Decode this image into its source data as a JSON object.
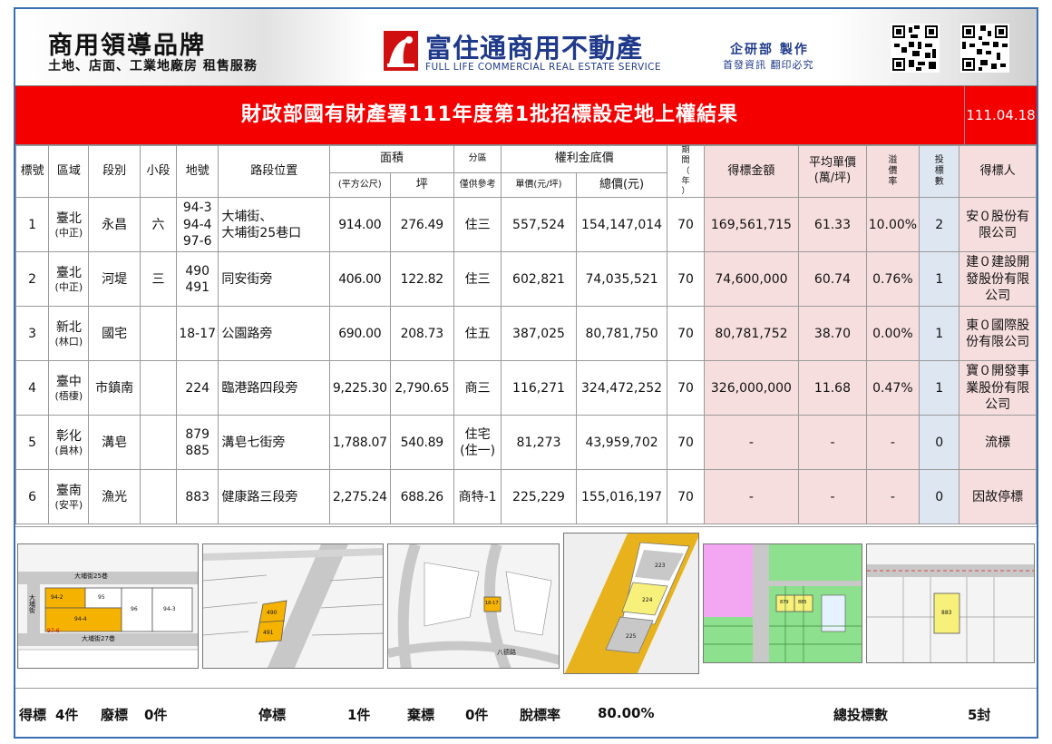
{
  "header": {
    "brand_title": "商用領導品牌",
    "brand_subtitle": "土地、店面、工業地廠房 租售服務",
    "company_name": "富住通商用不動產",
    "company_name_en": "FULL LIFE COMMERCIAL REAL ESTATE SERVICE",
    "made_by": "企研部 製作",
    "made_by_note": "首發資訊 翻印必究"
  },
  "title": "財政部國有財產署111年度第1批招標設定地上權結果",
  "date": "111.04.18",
  "columns": {
    "no": "標號",
    "region": "區域",
    "section": "段別",
    "subsection": "小段",
    "lot": "地號",
    "location": "路段位置",
    "area": "面積",
    "area_sqm": "(平方公尺)",
    "area_ping": "坪",
    "zone": "分區",
    "zone_note": "僅供參考",
    "base_price": "權利金底價",
    "unit_price": "單價(元/坪)",
    "total_price": "總價(元)",
    "term": "期間（年）",
    "winning_amount": "得標金額",
    "avg_unit_price": "平均單價(萬/坪)",
    "premium_rate": "溢價率",
    "bid_count": "投標數",
    "winner": "得標人"
  },
  "rows": [
    {
      "no": "1",
      "city": "臺北",
      "district": "(中正)",
      "section": "永昌",
      "subsection": "六",
      "lot": "94-3\n94-4\n97-6",
      "location": "大埔街、\n大埔街25巷口",
      "area_sqm": "914.00",
      "area_ping": "276.49",
      "zone": "住三",
      "unit_price": "557,524",
      "total_price": "154,147,014",
      "term": "70",
      "winning_amount": "169,561,715",
      "avg_unit_price": "61.33",
      "premium_rate": "10.00%",
      "bid_count": "2",
      "winner": "安０股份有限公司"
    },
    {
      "no": "2",
      "city": "臺北",
      "district": "(中正)",
      "section": "河堤",
      "subsection": "三",
      "lot": "490\n491",
      "location": "同安街旁",
      "area_sqm": "406.00",
      "area_ping": "122.82",
      "zone": "住三",
      "unit_price": "602,821",
      "total_price": "74,035,521",
      "term": "70",
      "winning_amount": "74,600,000",
      "avg_unit_price": "60.74",
      "premium_rate": "0.76%",
      "bid_count": "1",
      "winner": "建０建設開發股份有限公司"
    },
    {
      "no": "3",
      "city": "新北",
      "district": "(林口)",
      "section": "國宅",
      "subsection": "",
      "lot": "18-17",
      "location": "公園路旁",
      "area_sqm": "690.00",
      "area_ping": "208.73",
      "zone": "住五",
      "unit_price": "387,025",
      "total_price": "80,781,750",
      "term": "70",
      "winning_amount": "80,781,752",
      "avg_unit_price": "38.70",
      "premium_rate": "0.00%",
      "bid_count": "1",
      "winner": "東０國際股份有限公司"
    },
    {
      "no": "4",
      "city": "臺中",
      "district": "(梧棲)",
      "section": "市鎮南",
      "subsection": "",
      "lot": "224",
      "location": "臨港路四段旁",
      "area_sqm": "9,225.30",
      "area_ping": "2,790.65",
      "zone": "商三",
      "unit_price": "116,271",
      "total_price": "324,472,252",
      "term": "70",
      "winning_amount": "326,000,000",
      "avg_unit_price": "11.68",
      "premium_rate": "0.47%",
      "bid_count": "1",
      "winner": "寶０開發事業股份有限公司"
    },
    {
      "no": "5",
      "city": "彰化",
      "district": "(員林)",
      "section": "溝皂",
      "subsection": "",
      "lot": "879\n885",
      "location": "溝皂七街旁",
      "area_sqm": "1,788.07",
      "area_ping": "540.89",
      "zone": "住宅\n(住一)",
      "unit_price": "81,273",
      "total_price": "43,959,702",
      "term": "70",
      "winning_amount": "-",
      "avg_unit_price": "-",
      "premium_rate": "-",
      "bid_count": "0",
      "winner": "流標"
    },
    {
      "no": "6",
      "city": "臺南",
      "district": "(安平)",
      "section": "漁光",
      "subsection": "",
      "lot": "883",
      "location": "健康路三段旁",
      "area_sqm": "2,275.24",
      "area_ping": "688.26",
      "zone": "商特-1",
      "unit_price": "225,229",
      "total_price": "155,016,197",
      "term": "70",
      "winning_amount": "-",
      "avg_unit_price": "-",
      "premium_rate": "-",
      "bid_count": "0",
      "winner": "因故停標"
    }
  ],
  "maps": {
    "map1": {
      "street_top": "大埔街25巷",
      "street_bottom": "大埔街27巷",
      "street_left": "大埔街",
      "lots": [
        "94-2",
        "95",
        "94-4",
        "96",
        "94-3",
        "97-6"
      ]
    },
    "map2": {
      "lots": [
        "490",
        "491"
      ]
    },
    "map3": {
      "lots": [
        "18-17"
      ],
      "road": "八德路"
    },
    "map4": {
      "lots": [
        "223",
        "224",
        "225"
      ]
    },
    "map5": {
      "lots": [
        "879",
        "885"
      ]
    },
    "map6": {
      "lots": [
        "883"
      ]
    }
  },
  "footer": {
    "won_label": "得標",
    "won_value": "4件",
    "void_label": "廢標",
    "void_value": "0件",
    "stopped_label": "停標",
    "stopped_value": "1件",
    "abandoned_label": "棄標",
    "abandoned_value": "0件",
    "fail_rate_label": "脫標率",
    "fail_rate_value": "80.00%",
    "total_bids_label": "總投標數",
    "total_bids_value": "5封"
  },
  "colors": {
    "title_bg": "#f50000",
    "brand_blue": "#1f3a8a",
    "result_pink": "#f7dede",
    "bid_blue": "#dde6f1",
    "lot_highlight": "#f5b300",
    "border": "#3a6fb0"
  }
}
